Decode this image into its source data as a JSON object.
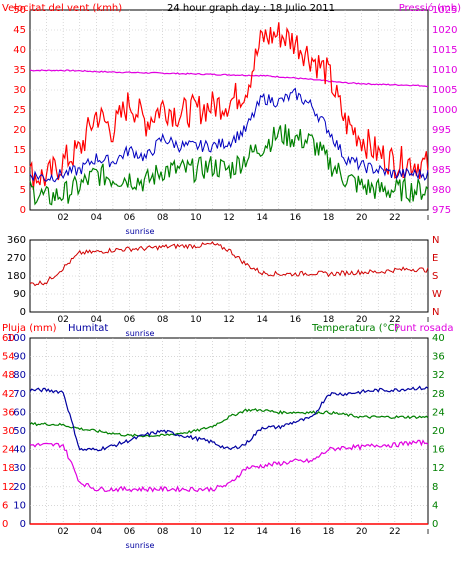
{
  "colors": {
    "wind_gust": "#ff0000",
    "wind_avg": "#008000",
    "wind_mean": "#0000c0",
    "pressure": "#e000e0",
    "direction": "#d00000",
    "humidity": "#0000a0",
    "temperature": "#008000",
    "dewpoint": "#e000e0",
    "rain": "#ff0000",
    "frame": "#000000",
    "grid": "#c0c0c0"
  },
  "chart_data": [
    {
      "type": "line",
      "title": "24 hour graph day : 18 Julio 2011",
      "ylabel": "Velocitat del vent (kmh)",
      "y2label": "Pressió (mb)",
      "ylim": [
        0,
        50
      ],
      "y2lim": [
        975,
        1025
      ],
      "yticks": [
        "0",
        "5",
        "10",
        "15",
        "20",
        "25",
        "30",
        "35",
        "40",
        "45",
        "50"
      ],
      "y2ticks": [
        "975",
        "980",
        "985",
        "990",
        "995",
        "1000",
        "1005",
        "1010",
        "1015",
        "1020",
        "1025"
      ],
      "xticks": [
        "02",
        "04",
        "06",
        "08",
        "10",
        "12",
        "14",
        "16",
        "18",
        "20",
        "22"
      ],
      "x_marker": "sunrise",
      "x": [
        0,
        1,
        2,
        3,
        4,
        5,
        6,
        7,
        8,
        9,
        10,
        11,
        12,
        13,
        14,
        15,
        16,
        17,
        18,
        19,
        20,
        21,
        22,
        23,
        24
      ],
      "series": [
        {
          "key": "gust",
          "values": [
            9,
            8,
            12,
            15,
            24,
            20,
            27,
            22,
            26,
            24,
            25,
            26,
            27,
            30,
            43,
            44,
            42,
            38,
            34,
            22,
            18,
            14,
            12,
            12,
            11
          ]
        },
        {
          "key": "avg",
          "values": [
            5,
            3,
            4,
            6,
            9,
            8,
            8,
            7,
            10,
            10,
            10,
            11,
            10,
            13,
            16,
            19,
            18,
            17,
            12,
            8,
            6,
            5,
            5,
            5,
            5
          ]
        },
        {
          "key": "mean",
          "values": [
            9,
            8,
            9,
            10,
            13,
            12,
            15,
            13,
            18,
            16,
            16,
            16,
            17,
            20,
            28,
            27,
            29,
            26,
            20,
            13,
            11,
            10,
            9,
            9,
            9
          ]
        },
        {
          "key": "pressure",
          "values": [
            1009.9,
            1009.9,
            1009.9,
            1009.8,
            1009.6,
            1009.5,
            1009.4,
            1009.3,
            1009.2,
            1009.1,
            1009.0,
            1008.9,
            1008.8,
            1008.7,
            1008.6,
            1008.3,
            1008.0,
            1007.6,
            1007.2,
            1006.8,
            1006.6,
            1006.4,
            1006.3,
            1006.2,
            1006.0
          ]
        }
      ]
    },
    {
      "type": "line",
      "yticks": [
        "0",
        "90",
        "180",
        "270",
        "360"
      ],
      "y2ticks": [
        "N",
        "W",
        "S",
        "E",
        "N"
      ],
      "ylim": [
        0,
        360
      ],
      "xticks": [
        "02",
        "04",
        "06",
        "08",
        "10",
        "12",
        "14",
        "16",
        "18",
        "20",
        "22"
      ],
      "x_marker": "sunrise",
      "x": [
        0,
        1,
        2,
        3,
        4,
        5,
        6,
        7,
        8,
        9,
        10,
        11,
        12,
        13,
        14,
        15,
        16,
        17,
        18,
        19,
        20,
        21,
        22,
        23,
        24
      ],
      "series": [
        {
          "key": "direction",
          "values": [
            140,
            150,
            220,
            295,
            300,
            310,
            315,
            318,
            325,
            330,
            330,
            340,
            310,
            240,
            195,
            190,
            190,
            195,
            190,
            195,
            200,
            200,
            210,
            215,
            210
          ]
        }
      ]
    },
    {
      "type": "line",
      "ylabel": "Pluja (mm)",
      "ylabel2": "Humitat",
      "y2label": "Temperatura (°C)",
      "y2label2": "Punt rosada",
      "ylim": [
        0,
        100
      ],
      "y2lim": [
        0,
        40
      ],
      "yticks": [
        "0",
        "10",
        "20",
        "30",
        "40",
        "50",
        "60",
        "70",
        "80",
        "90",
        "100"
      ],
      "yticks_rain": [
        "0",
        "6",
        "12",
        "18",
        "24",
        "30",
        "36",
        "42",
        "48",
        "54",
        "60"
      ],
      "y2ticks": [
        "0",
        "4",
        "8",
        "12",
        "16",
        "20",
        "24",
        "28",
        "32",
        "36",
        "40"
      ],
      "xticks": [
        "02",
        "04",
        "06",
        "08",
        "10",
        "12",
        "14",
        "16",
        "18",
        "20",
        "22"
      ],
      "x_marker": "sunrise",
      "x": [
        0,
        1,
        2,
        3,
        4,
        5,
        6,
        7,
        8,
        9,
        10,
        11,
        12,
        13,
        14,
        15,
        16,
        17,
        18,
        19,
        20,
        21,
        22,
        23,
        24
      ],
      "series": [
        {
          "key": "humidity",
          "values": [
            72,
            72,
            71,
            40,
            40,
            42,
            45,
            48,
            50,
            48,
            46,
            44,
            40,
            43,
            52,
            52,
            55,
            57,
            70,
            70,
            71,
            72,
            72,
            73,
            73
          ]
        },
        {
          "key": "temperature",
          "values": [
            21.5,
            21.5,
            21.3,
            20.5,
            20,
            19.5,
            19,
            19,
            19,
            19.5,
            20,
            21,
            23,
            24.5,
            24.5,
            24,
            24,
            24,
            24,
            23.5,
            23,
            23,
            23,
            23,
            23
          ]
        },
        {
          "key": "dewpoint",
          "values": [
            17,
            17,
            17,
            9,
            7.5,
            7.5,
            7.5,
            7.5,
            7.5,
            7.5,
            7.5,
            7.5,
            8.5,
            12,
            12.5,
            13,
            13.5,
            13.5,
            16,
            16.5,
            16.5,
            17,
            17,
            17.5,
            17.5
          ]
        },
        {
          "key": "rain",
          "values": [
            0,
            0,
            0,
            0,
            0,
            0,
            0,
            0,
            0,
            0,
            0,
            0,
            0,
            0,
            0,
            0,
            0,
            0,
            0,
            0,
            0,
            0,
            0,
            0,
            0
          ]
        }
      ]
    }
  ]
}
